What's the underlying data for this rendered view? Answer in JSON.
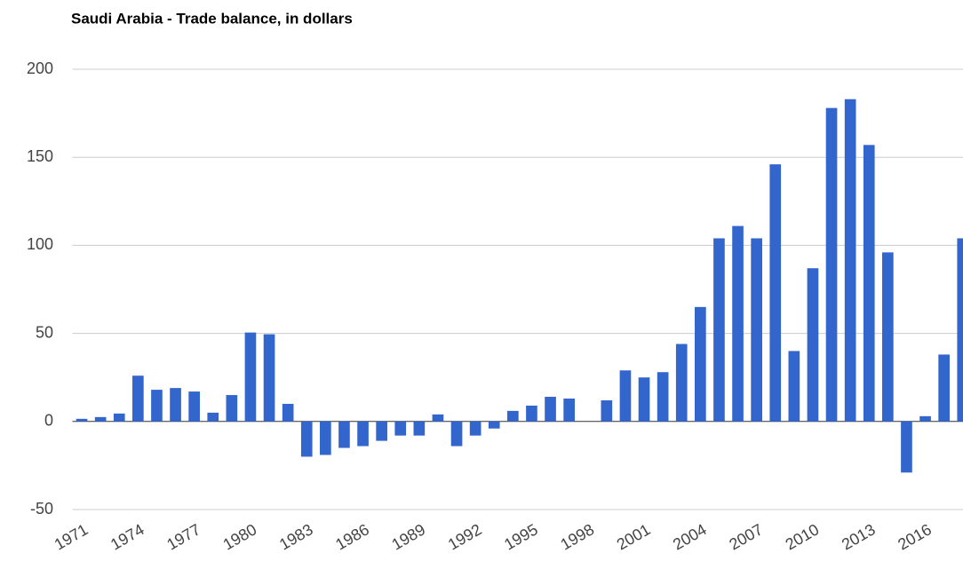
{
  "chart_data": {
    "type": "bar",
    "title": "Saudi Arabia - Trade balance, in dollars",
    "categories": [
      "1971",
      null,
      null,
      "1974",
      null,
      null,
      "1977",
      null,
      null,
      "1980",
      null,
      null,
      "1983",
      null,
      null,
      "1986",
      null,
      null,
      "1989",
      null,
      null,
      "1992",
      null,
      null,
      "1995",
      null,
      null,
      "1998",
      null,
      null,
      "2001",
      null,
      null,
      "2004",
      null,
      null,
      "2007",
      null,
      null,
      "2010",
      null,
      null,
      "2013",
      null,
      null,
      "2016",
      null,
      null
    ],
    "values": [
      1.5,
      2.5,
      4.5,
      26,
      18,
      19,
      17,
      5,
      15,
      50.5,
      49.5,
      10,
      -20,
      -19,
      -15,
      -14,
      -11,
      -8,
      -8,
      4,
      -14,
      -8,
      -4,
      6,
      9,
      14,
      13,
      0,
      12,
      29,
      25,
      28,
      44,
      65,
      104,
      111,
      104,
      146,
      40,
      87,
      178,
      183,
      157,
      96,
      -29,
      3,
      38,
      104
    ],
    "color": "#3366cc",
    "ylim": [
      -50,
      200
    ],
    "yticks": [
      -50,
      0,
      50,
      100,
      150,
      200
    ],
    "grid": true
  }
}
